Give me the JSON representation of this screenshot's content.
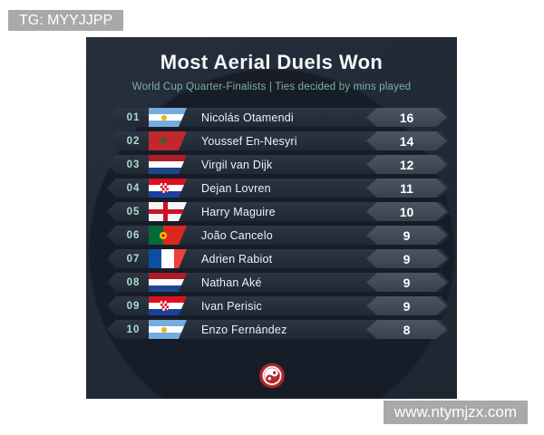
{
  "watermark_top_left": {
    "label": "TG: MYYJJPP"
  },
  "watermark_bottom_right": {
    "label": "www.ntymjzx.com"
  },
  "card": {
    "title": "Most Aerial Duels Won",
    "subtitle": "World Cup Quarter-Finalists | Ties decided by mins played",
    "logo_icon": "yin-yang-crest-logo"
  },
  "colors": {
    "page_bg": "#ffffff",
    "card_bg": "#222a37",
    "card_vignette": "#171d28",
    "row_bg": "#253040",
    "value_badge_bg": "#434d5c",
    "rank_text": "#abdfc8",
    "subtitle_text": "#7fb2a0",
    "title_text": "#f4f6f8",
    "value_text": "#ffffff",
    "logo_red": "#b5292d",
    "watermark_bg": "#a9a9a9"
  },
  "chart_data": {
    "type": "table",
    "title": "Most Aerial Duels Won",
    "subtitle": "World Cup Quarter-Finalists | Ties decided by mins played",
    "columns": [
      "rank",
      "flag",
      "player",
      "aerial_duels_won"
    ],
    "rows": [
      {
        "rank": "01",
        "flag": "argentina",
        "player": "Nicolás Otamendi",
        "value": 16
      },
      {
        "rank": "02",
        "flag": "morocco",
        "player": "Youssef En-Nesyri",
        "value": 14
      },
      {
        "rank": "03",
        "flag": "netherlands",
        "player": "Virgil van Dijk",
        "value": 12
      },
      {
        "rank": "04",
        "flag": "croatia",
        "player": "Dejan Lovren",
        "value": 11
      },
      {
        "rank": "05",
        "flag": "england",
        "player": "Harry Maguire",
        "value": 10
      },
      {
        "rank": "06",
        "flag": "portugal",
        "player": "João Cancelo",
        "value": 9
      },
      {
        "rank": "07",
        "flag": "france",
        "player": "Adrien Rabiot",
        "value": 9
      },
      {
        "rank": "08",
        "flag": "netherlands",
        "player": "Nathan Aké",
        "value": 9
      },
      {
        "rank": "09",
        "flag": "croatia",
        "player": "Ivan Perisic",
        "value": 9
      },
      {
        "rank": "10",
        "flag": "argentina",
        "player": "Enzo Fernández",
        "value": 8
      }
    ]
  }
}
